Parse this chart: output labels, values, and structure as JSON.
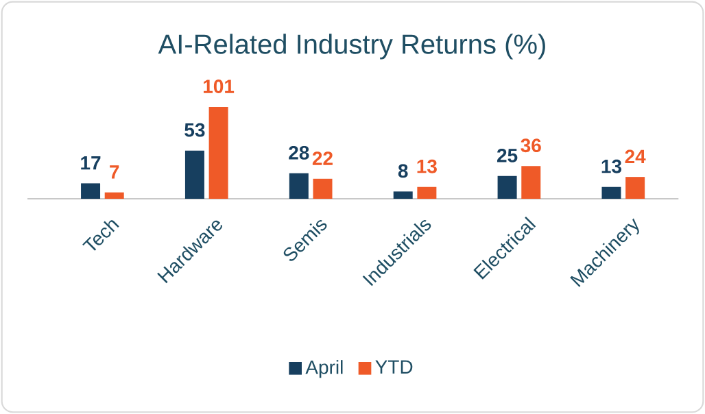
{
  "chart_data": {
    "type": "bar",
    "title": "AI-Related Industry Returns (%)",
    "categories": [
      "Tech",
      "Hardware",
      "Semis",
      "Industrials",
      "Electrical",
      "Machinery"
    ],
    "series": [
      {
        "name": "April",
        "color": "#173f5f",
        "values": [
          17,
          53,
          28,
          8,
          25,
          13
        ]
      },
      {
        "name": "YTD",
        "color": "#ef5a28",
        "values": [
          7,
          101,
          22,
          13,
          36,
          24
        ]
      }
    ],
    "data_labels": true,
    "legend": "bottom"
  }
}
